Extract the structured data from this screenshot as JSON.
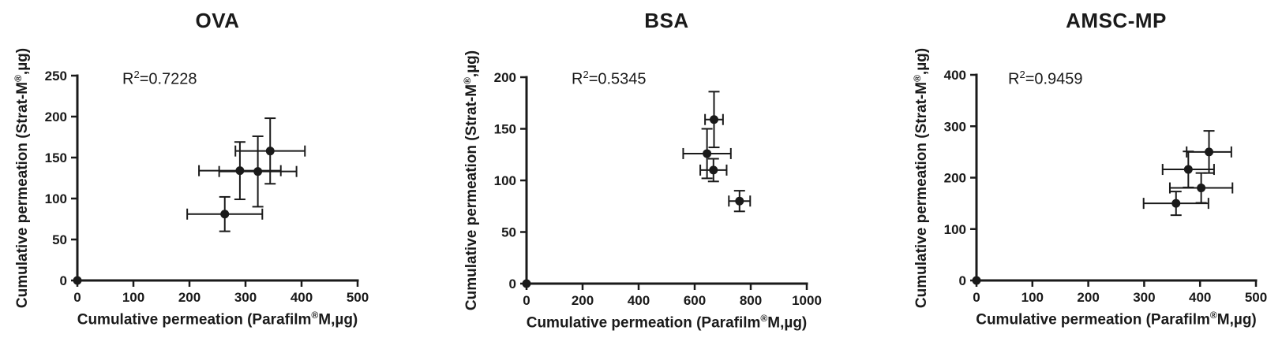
{
  "style": {
    "ink": "#1a1a1a",
    "background": "#ffffff"
  },
  "chart_data": [
    {
      "type": "scatter",
      "title": "OVA",
      "annotation": "R²=0.7228",
      "r2_parts": [
        "R",
        "2",
        "=0.7228"
      ],
      "xlabel": "Cumulative permeation (Parafilm®M,µg)",
      "xlabel_parts": [
        "Cumulative permeation (Parafilm",
        "®",
        "M,µg)"
      ],
      "ylabel": "Cumulative permeation (Strat-M®,µg)",
      "ylabel_parts": [
        "Cumulative permeation (Strat-M",
        "®",
        ",µg)"
      ],
      "xlim": [
        0,
        500
      ],
      "ylim": [
        0,
        250
      ],
      "xticks": [
        0,
        100,
        200,
        300,
        400,
        500
      ],
      "yticks": [
        0,
        50,
        100,
        150,
        200,
        250
      ],
      "grid": false,
      "legend": "none",
      "marker": "filled-circle-with-xy-error-bars",
      "points": [
        {
          "x": 0,
          "y": 0,
          "xerr": 0,
          "yerr": 0
        },
        {
          "x": 263,
          "y": 81,
          "xerr": 67,
          "yerr": 21
        },
        {
          "x": 290,
          "y": 134,
          "xerr": 73,
          "yerr": 35
        },
        {
          "x": 322,
          "y": 133,
          "xerr": 69,
          "yerr": 43
        },
        {
          "x": 344,
          "y": 158,
          "xerr": 62,
          "yerr": 40
        }
      ]
    },
    {
      "type": "scatter",
      "title": "BSA",
      "annotation": "R²=0.5345",
      "r2_parts": [
        "R",
        "2",
        "=0.5345"
      ],
      "xlabel": "Cumulative permeation (Parafilm®M,µg)",
      "xlabel_parts": [
        "Cumulative permeation (Parafilm",
        "®",
        "M,µg)"
      ],
      "ylabel": "Cumulative permeation (Strat-M®,µg)",
      "ylabel_parts": [
        "Cumulative permeation (Strat-M",
        "®",
        ",µg)"
      ],
      "xlim": [
        0,
        1000
      ],
      "ylim": [
        0,
        200
      ],
      "xticks": [
        0,
        200,
        400,
        600,
        800,
        1000
      ],
      "yticks": [
        0,
        50,
        100,
        150,
        200
      ],
      "grid": false,
      "legend": "none",
      "marker": "filled-circle-with-xy-error-bars",
      "points": [
        {
          "x": 0,
          "y": 0,
          "xerr": 0,
          "yerr": 0
        },
        {
          "x": 644,
          "y": 126,
          "xerr": 85,
          "yerr": 24
        },
        {
          "x": 667,
          "y": 110,
          "xerr": 47,
          "yerr": 11
        },
        {
          "x": 669,
          "y": 159,
          "xerr": 32,
          "yerr": 27
        },
        {
          "x": 760,
          "y": 80,
          "xerr": 38,
          "yerr": 10
        }
      ]
    },
    {
      "type": "scatter",
      "title": "AMSC-MP",
      "annotation": "R²=0.9459",
      "r2_parts": [
        "R",
        "2",
        "=0.9459"
      ],
      "xlabel": "Cumulative permeation (Parafilm®M,µg)",
      "xlabel_parts": [
        "Cumulative permeation (Parafilm",
        "®",
        "M,µg)"
      ],
      "ylabel": "Cumulative permeation (Strat-M®,µg)",
      "ylabel_parts": [
        "Cumulative permeation (Strat-M",
        "®",
        ",µg)"
      ],
      "xlim": [
        0,
        500
      ],
      "ylim": [
        0,
        400
      ],
      "xticks": [
        0,
        100,
        200,
        300,
        400,
        500
      ],
      "yticks": [
        0,
        100,
        200,
        300,
        400
      ],
      "grid": false,
      "legend": "none",
      "marker": "filled-circle-with-xy-error-bars",
      "points": [
        {
          "x": 0,
          "y": 0,
          "xerr": 0,
          "yerr": 0
        },
        {
          "x": 357,
          "y": 150,
          "xerr": 58,
          "yerr": 23
        },
        {
          "x": 379,
          "y": 216,
          "xerr": 46,
          "yerr": 35
        },
        {
          "x": 402,
          "y": 180,
          "xerr": 56,
          "yerr": 29
        },
        {
          "x": 416,
          "y": 250,
          "xerr": 40,
          "yerr": 41
        }
      ]
    }
  ]
}
